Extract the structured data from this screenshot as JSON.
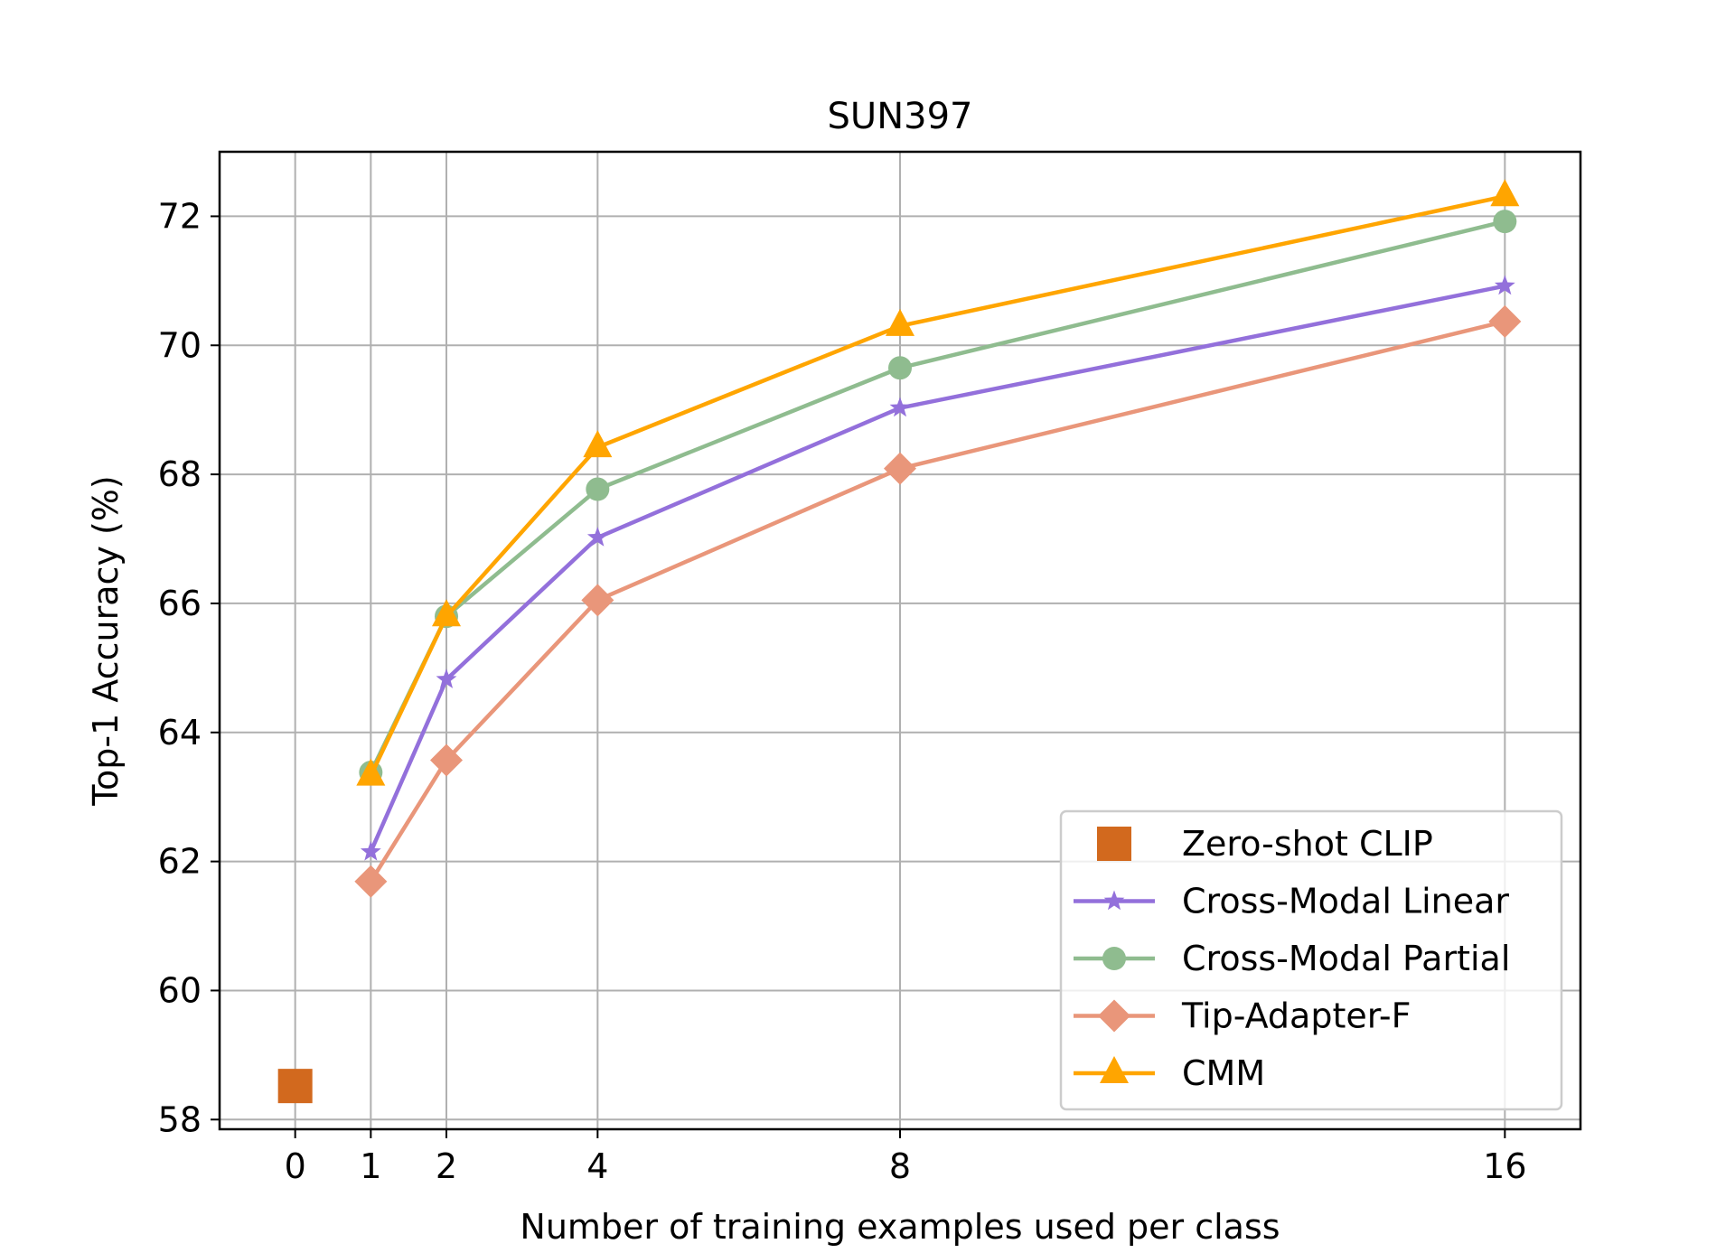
{
  "chart_data": {
    "type": "line",
    "title": "SUN397",
    "xlabel": "Number of training examples used per class",
    "ylabel": "Top-1 Accuracy (%)",
    "xlim": [
      -1,
      17
    ],
    "ylim": [
      57.85,
      73.0
    ],
    "x_ticks": [
      0,
      1,
      2,
      4,
      8,
      16
    ],
    "x_tick_labels": [
      "0",
      "1",
      "2",
      "4",
      "8",
      "16"
    ],
    "y_ticks": [
      58,
      60,
      62,
      64,
      66,
      68,
      70,
      72
    ],
    "y_tick_labels": [
      "58",
      "60",
      "62",
      "64",
      "66",
      "68",
      "70",
      "72"
    ],
    "grid": true,
    "legend_position": "lower-right",
    "series": [
      {
        "name": "Zero-shot CLIP",
        "color": "#d2691e",
        "marker": "square",
        "line": false,
        "x": [
          0
        ],
        "values": [
          58.52
        ]
      },
      {
        "name": "Cross-Modal Linear",
        "color": "#9370db",
        "marker": "star",
        "line": true,
        "x": [
          1,
          2,
          4,
          8,
          16
        ],
        "values": [
          62.15,
          64.82,
          67.02,
          69.03,
          70.92
        ]
      },
      {
        "name": "Cross-Modal Partial",
        "color": "#8fbc8f",
        "marker": "circle",
        "line": true,
        "x": [
          1,
          2,
          4,
          8,
          16
        ],
        "values": [
          63.38,
          65.8,
          67.77,
          69.65,
          71.92
        ]
      },
      {
        "name": "Tip-Adapter-F",
        "color": "#e9967a",
        "marker": "diamond",
        "line": true,
        "x": [
          1,
          2,
          4,
          8,
          16
        ],
        "values": [
          61.69,
          63.57,
          66.05,
          68.09,
          70.37
        ]
      },
      {
        "name": "CMM",
        "color": "#ffa500",
        "marker": "triangle",
        "line": true,
        "x": [
          1,
          2,
          4,
          8,
          16
        ],
        "values": [
          63.33,
          65.8,
          68.42,
          70.3,
          72.31
        ]
      }
    ]
  }
}
